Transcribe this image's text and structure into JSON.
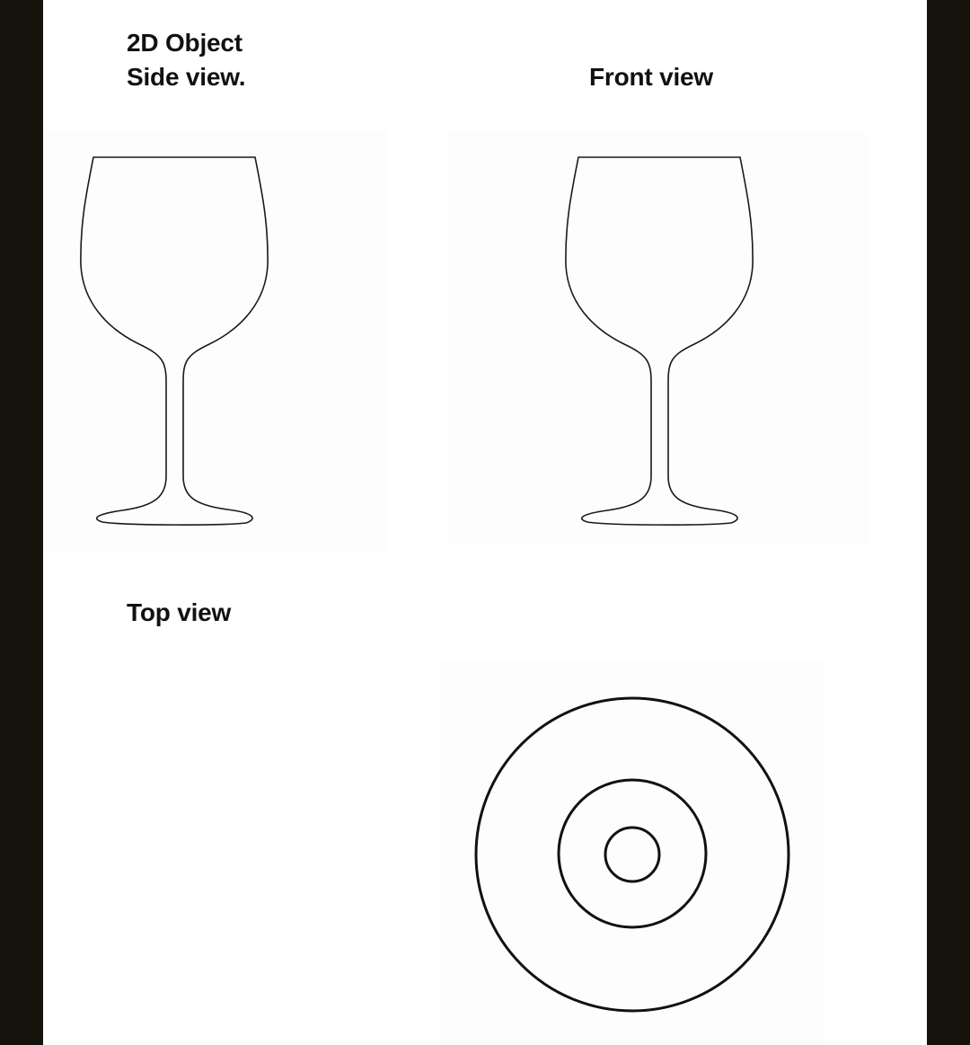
{
  "labels": {
    "title_line1": "2D Object",
    "title_line2": "Side view.",
    "front_view": "Front view",
    "top_view": "Top view"
  },
  "colors": {
    "frame": "#16130c",
    "page": "#ffffff",
    "stroke": "#1a1a1a"
  },
  "icons": [
    "wine-glass-side-icon",
    "wine-glass-front-icon",
    "wine-glass-top-icon"
  ]
}
